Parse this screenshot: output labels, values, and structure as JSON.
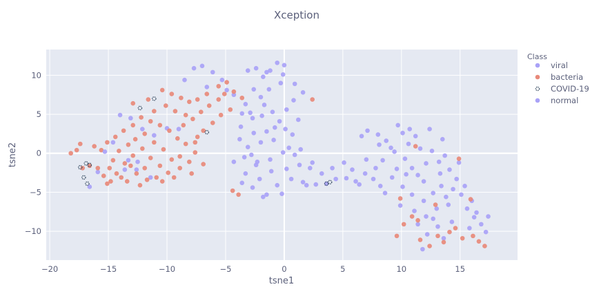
{
  "chart_data": {
    "type": "scatter",
    "title": "Xception",
    "xlabel": "tsne1",
    "ylabel": "tsne2",
    "xlim": [
      -20.3,
      19.9
    ],
    "ylim": [
      -13.7,
      13.3
    ],
    "x_ticks": [
      -20,
      -15,
      -10,
      -5,
      0,
      5,
      10,
      15
    ],
    "y_ticks": [
      -10,
      -5,
      0,
      5,
      10
    ],
    "grid": true,
    "legend": {
      "title": "Class",
      "placement": "right",
      "entries": [
        "viral",
        "bacteria",
        "COVID-19",
        "normal"
      ]
    },
    "colors": {
      "viral": "#a9a2f7",
      "bacteria": "#e8897a",
      "COVID-19": "#3d5166",
      "normal": "#a9a2f7",
      "plot_bg": "#e5e9f2",
      "grid": "#ffffff"
    },
    "series": [
      {
        "name": "viral",
        "points": [
          [
            -7.7,
            10.9
          ],
          [
            -7,
            11.2
          ],
          [
            -8.5,
            9.4
          ],
          [
            -6.1,
            10.4
          ],
          [
            -6.6,
            8.5
          ],
          [
            -5.3,
            9.4
          ],
          [
            -4.9,
            8.1
          ],
          [
            -4.3,
            7.5
          ],
          [
            -3.1,
            10.6
          ],
          [
            -2.4,
            10.9
          ],
          [
            -1.8,
            9.8
          ],
          [
            -1.2,
            10.6
          ],
          [
            -0.6,
            11.6
          ],
          [
            0,
            11.3
          ],
          [
            -0.1,
            10.1
          ],
          [
            -1.3,
            8.2
          ],
          [
            -2,
            7.2
          ],
          [
            -3.3,
            6.3
          ],
          [
            -3.6,
            5.1
          ],
          [
            -2.7,
            4.5
          ],
          [
            -1.9,
            4.8
          ],
          [
            -1,
            5.3
          ],
          [
            -0.4,
            4.1
          ],
          [
            0.2,
            5.6
          ],
          [
            0.8,
            6.8
          ],
          [
            1.6,
            7.8
          ],
          [
            1.2,
            4.3
          ],
          [
            0.1,
            3.1
          ],
          [
            -1.5,
            2.8
          ],
          [
            -2.6,
            2.6
          ],
          [
            -3.8,
            1.8
          ],
          [
            -3.1,
            0.8
          ],
          [
            -2,
            1.4
          ],
          [
            -0.9,
            1.7
          ],
          [
            0.4,
            0.7
          ],
          [
            -0.1,
            0.1
          ],
          [
            -1.2,
            -0.8
          ],
          [
            -2.4,
            -1.5
          ],
          [
            -3.4,
            -0.5
          ],
          [
            -4.3,
            -1.1
          ],
          [
            -3.3,
            -2.6
          ],
          [
            -2.1,
            -3.3
          ],
          [
            -2.7,
            -4.4
          ],
          [
            -1.5,
            -5.3
          ],
          [
            -0.6,
            -4.1
          ],
          [
            0.6,
            -3.3
          ],
          [
            0.2,
            -2
          ],
          [
            1.3,
            -1.5
          ],
          [
            2.2,
            -1.9
          ],
          [
            1.6,
            -3.7
          ],
          [
            2.7,
            -4
          ],
          [
            3.2,
            -2.6
          ],
          [
            4.1,
            -1.9
          ],
          [
            4.4,
            -3.3
          ],
          [
            3.6,
            -3.9
          ],
          [
            0.9,
            -0.2
          ],
          [
            1.4,
            0.5
          ],
          [
            -0.2,
            -5.2
          ],
          [
            -1.1,
            -2.3
          ],
          [
            -2.8,
            -0.2
          ],
          [
            -16.6,
            -4.3
          ],
          [
            -15.9,
            -2.4
          ],
          [
            -13.3,
            -0.9
          ],
          [
            -12.6,
            -2.1
          ],
          [
            -11.4,
            -3.1
          ],
          [
            -14.6,
            1.4
          ],
          [
            -12.1,
            3.1
          ],
          [
            -11.1,
            2.3
          ],
          [
            -10,
            3.2
          ],
          [
            -14,
            4.9
          ],
          [
            -13.1,
            4.5
          ],
          [
            -9,
            3.1
          ],
          [
            5.1,
            -1.2
          ],
          [
            5.3,
            -3.2
          ],
          [
            6.4,
            -4
          ],
          [
            6.9,
            -2.6
          ],
          [
            7.6,
            -3.3
          ],
          [
            8.2,
            -4.2
          ],
          [
            7,
            -0.8
          ],
          [
            8.4,
            -0.9
          ],
          [
            9.1,
            0.7
          ],
          [
            7.1,
            2.9
          ],
          [
            8,
            2.4
          ],
          [
            8.7,
            1.6
          ],
          [
            9.7,
            3.6
          ],
          [
            10.1,
            2.6
          ],
          [
            10.6,
            1.2
          ],
          [
            11.2,
            2.2
          ],
          [
            11.6,
            0.6
          ],
          [
            10.3,
            -0.7
          ],
          [
            10.9,
            -1.9
          ],
          [
            11.4,
            -2.8
          ],
          [
            12.1,
            -1.3
          ],
          [
            12.6,
            0.3
          ],
          [
            13.2,
            -1.1
          ],
          [
            13.7,
            -0.3
          ],
          [
            14.1,
            -2.1
          ],
          [
            14.7,
            -3.3
          ],
          [
            13.4,
            -4.2
          ],
          [
            12.7,
            -5.1
          ],
          [
            11.9,
            -6.1
          ],
          [
            10.9,
            -5.3
          ],
          [
            10.1,
            -4.3
          ],
          [
            9.2,
            -3.1
          ],
          [
            9.9,
            -6.7
          ],
          [
            11.1,
            -7.4
          ],
          [
            12.1,
            -8.1
          ],
          [
            13,
            -7.1
          ],
          [
            14,
            -6.6
          ],
          [
            15.1,
            -5.3
          ],
          [
            15.6,
            -7.1
          ],
          [
            16.2,
            -8.2
          ],
          [
            16.8,
            -9.1
          ],
          [
            17.4,
            -8.1
          ],
          [
            15.8,
            -9.6
          ],
          [
            14.3,
            -8.8
          ],
          [
            13.1,
            -9.4
          ],
          [
            12.2,
            -10.4
          ],
          [
            13.6,
            -10.9
          ],
          [
            11.4,
            -9.1
          ],
          [
            9.6,
            -2
          ],
          [
            12.4,
            3.1
          ],
          [
            13.5,
            1.8
          ],
          [
            14.9,
            -1.2
          ],
          [
            15.4,
            -4.2
          ],
          [
            16,
            -6.1
          ],
          [
            10.7,
            3.1
          ],
          [
            6.1,
            -3.6
          ]
        ]
      },
      {
        "name": "bacteria",
        "points": [
          [
            -18.2,
            0
          ],
          [
            -17.7,
            0.4
          ],
          [
            -17.4,
            1.2
          ],
          [
            -16.6,
            -1.6
          ],
          [
            -15.4,
            -2.9
          ],
          [
            -14.8,
            -3.6
          ],
          [
            -14.3,
            -2.6
          ],
          [
            -13.6,
            -1.3
          ],
          [
            -12.9,
            -0.3
          ],
          [
            -12.1,
            0.6
          ],
          [
            -11.4,
            -0.6
          ],
          [
            -10.6,
            -1.6
          ],
          [
            -9.9,
            -2.5
          ],
          [
            -10.9,
            -3.1
          ],
          [
            -11.7,
            -3.4
          ],
          [
            -12.3,
            -4.1
          ],
          [
            -13.4,
            -3.6
          ],
          [
            -14.6,
            -0.9
          ],
          [
            -14.1,
            0.3
          ],
          [
            -13.3,
            1.1
          ],
          [
            -12.7,
            1.8
          ],
          [
            -11.9,
            2.5
          ],
          [
            -11.1,
            1.4
          ],
          [
            -10.3,
            0.5
          ],
          [
            -9.6,
            -0.8
          ],
          [
            -8.9,
            -1.9
          ],
          [
            -8.1,
            -1.1
          ],
          [
            -7.6,
            0.1
          ],
          [
            -8.4,
            1.2
          ],
          [
            -9.1,
            1.9
          ],
          [
            -9.8,
            2.9
          ],
          [
            -10.6,
            3.6
          ],
          [
            -11.4,
            4.1
          ],
          [
            -12.2,
            4.6
          ],
          [
            -12.9,
            3.6
          ],
          [
            -13.7,
            2.9
          ],
          [
            -14.4,
            2.1
          ],
          [
            -15.1,
            1.4
          ],
          [
            -15.6,
            0.4
          ],
          [
            -14.9,
            -1.9
          ],
          [
            -8.6,
            3.6
          ],
          [
            -7.8,
            4.4
          ],
          [
            -7.1,
            5.3
          ],
          [
            -6.4,
            6.1
          ],
          [
            -5.6,
            6.9
          ],
          [
            -5.1,
            7.6
          ],
          [
            -4.3,
            7.9
          ],
          [
            -3.6,
            7.1
          ],
          [
            -4.6,
            5.6
          ],
          [
            -5.4,
            4.9
          ],
          [
            -6.1,
            3.9
          ],
          [
            -6.9,
            2.9
          ],
          [
            -7.4,
            2.1
          ],
          [
            -8.1,
            6.6
          ],
          [
            -8.8,
            7.1
          ],
          [
            -9.6,
            7.6
          ],
          [
            -10.4,
            8.1
          ],
          [
            -10.1,
            6.1
          ],
          [
            -9.3,
            5.4
          ],
          [
            -8.4,
            4.9
          ],
          [
            -7.4,
            6.9
          ],
          [
            -6.6,
            7.6
          ],
          [
            -5.6,
            8.6
          ],
          [
            -4.9,
            9.1
          ],
          [
            -11.1,
            5.4
          ],
          [
            -11.6,
            6.9
          ],
          [
            -12.9,
            6.4
          ],
          [
            -15.1,
            -3.9
          ],
          [
            -15.9,
            -1.9
          ],
          [
            -13.9,
            -3.1
          ],
          [
            -12.6,
            -2.6
          ],
          [
            -11.9,
            -1.9
          ],
          [
            -10.4,
            -3.6
          ],
          [
            -9.4,
            -3.1
          ],
          [
            -8.9,
            -0.4
          ],
          [
            -7.9,
            -2.6
          ],
          [
            -6.9,
            -1.4
          ],
          [
            -7.6,
            1.4
          ],
          [
            -13.1,
            -1.6
          ],
          [
            -4.4,
            -4.8
          ],
          [
            -3.9,
            -5.3
          ],
          [
            2.4,
            6.9
          ],
          [
            -17.2,
            -1.9
          ],
          [
            -16.2,
            0.9
          ],
          [
            10.9,
            -8.1
          ],
          [
            11.4,
            -8.6
          ],
          [
            10.2,
            -9.1
          ],
          [
            9.6,
            -10.6
          ],
          [
            11.6,
            -11.1
          ],
          [
            12.4,
            -11.9
          ],
          [
            13.1,
            -10.6
          ],
          [
            13.6,
            -11.4
          ],
          [
            14.1,
            -10.1
          ],
          [
            14.6,
            -9.6
          ],
          [
            15.2,
            -10.9
          ],
          [
            16.1,
            -10.6
          ],
          [
            16.6,
            -11.3
          ],
          [
            17.1,
            -11.9
          ],
          [
            15.9,
            -5.9
          ],
          [
            12.9,
            -6.6
          ],
          [
            11.2,
            0.9
          ],
          [
            14.9,
            -0.7
          ],
          [
            9.9,
            -5.8
          ]
        ]
      },
      {
        "name": "COVID-19",
        "points": [
          [
            -17.4,
            -1.8
          ],
          [
            -16.9,
            -1.3
          ],
          [
            -16.6,
            -1.5
          ],
          [
            -17.1,
            -3.1
          ],
          [
            -16.8,
            -3.9
          ],
          [
            -12.3,
            5.8
          ],
          [
            -11.1,
            7
          ],
          [
            -6.6,
            2.7
          ],
          [
            3.6,
            -3.9
          ],
          [
            3.9,
            -3.7
          ]
        ]
      },
      {
        "name": "normal",
        "points": [
          [
            -2.6,
            8.2
          ],
          [
            -1.5,
            10.4
          ],
          [
            -0.3,
            9
          ],
          [
            0.9,
            8.9
          ],
          [
            -1.7,
            6.2
          ],
          [
            -2.9,
            5.2
          ],
          [
            -0.8,
            3.3
          ],
          [
            0.7,
            2.4
          ],
          [
            -3.7,
            3.4
          ],
          [
            -2.3,
            -1.1
          ],
          [
            -1.8,
            -5.6
          ],
          [
            -3.6,
            -3.8
          ],
          [
            1.9,
            -4.1
          ],
          [
            2.4,
            -1.2
          ],
          [
            5.8,
            -2.1
          ],
          [
            7.8,
            -1.9
          ],
          [
            8.6,
            -5.1
          ],
          [
            9.4,
            0.2
          ],
          [
            10.4,
            -2.7
          ],
          [
            11.9,
            -3.6
          ],
          [
            13.3,
            -2.6
          ],
          [
            14.4,
            -4.6
          ],
          [
            16.4,
            -7.6
          ],
          [
            17.2,
            -10.1
          ],
          [
            12.7,
            -8.4
          ],
          [
            11.8,
            -12.3
          ],
          [
            13.8,
            -5.6
          ],
          [
            8.1,
            1.1
          ],
          [
            6.6,
            2.2
          ],
          [
            -13.6,
            -2.1
          ],
          [
            -15.3,
            0.2
          ],
          [
            -12.5,
            -1.1
          ]
        ]
      }
    ]
  }
}
